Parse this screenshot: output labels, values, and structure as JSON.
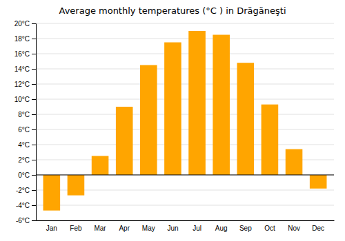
{
  "chart_data": {
    "type": "bar",
    "title": "Average monthly temperatures (°C ) in Drăgăneşti",
    "categories": [
      "Jan",
      "Feb",
      "Mar",
      "Apr",
      "May",
      "Jun",
      "Jul",
      "Aug",
      "Sep",
      "Oct",
      "Nov",
      "Dec"
    ],
    "values": [
      -4.7,
      -2.7,
      2.5,
      9.0,
      14.5,
      17.5,
      19.0,
      18.5,
      14.8,
      9.3,
      3.4,
      -1.8
    ],
    "color": "#FFA500",
    "ylim": [
      -6,
      20
    ],
    "yticks": [
      {
        "value": -6,
        "label": "-6°C"
      },
      {
        "value": -4,
        "label": "-4°C"
      },
      {
        "value": -2,
        "label": "-2°C"
      },
      {
        "value": 0,
        "label": "0°C"
      },
      {
        "value": 2,
        "label": "2°C"
      },
      {
        "value": 4,
        "label": "4°C"
      },
      {
        "value": 6,
        "label": "6°C"
      },
      {
        "value": 8,
        "label": "8°C"
      },
      {
        "value": 10,
        "label": "10°C"
      },
      {
        "value": 12,
        "label": "12°C"
      },
      {
        "value": 14,
        "label": "14°C"
      },
      {
        "value": 16,
        "label": "16°C"
      },
      {
        "value": 18,
        "label": "18°C"
      },
      {
        "value": 20,
        "label": "20°C"
      }
    ],
    "grid": true
  }
}
